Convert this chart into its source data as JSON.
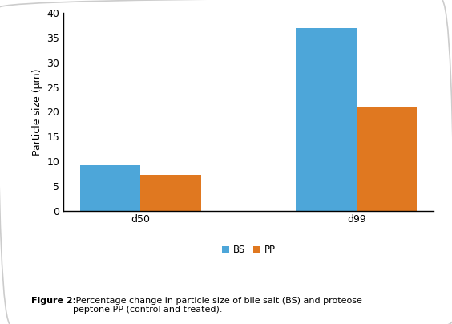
{
  "categories": [
    "d50",
    "d99"
  ],
  "bs_values": [
    9.2,
    37.0
  ],
  "pp_values": [
    7.3,
    21.0
  ],
  "bs_color": "#4da6d9",
  "pp_color": "#e07820",
  "ylabel": "Particle size (μm)",
  "ylim": [
    0,
    40
  ],
  "yticks": [
    0,
    5,
    10,
    15,
    20,
    25,
    30,
    35,
    40
  ],
  "legend_labels": [
    "BS",
    "PP"
  ],
  "bar_width": 0.28,
  "figure_caption_bold": "Figure 2:",
  "figure_caption_rest": " Percentage change in particle size of bile salt (BS) and proteose\npeptone PP (control and treated).",
  "background_color": "#ffffff",
  "spine_color": "#000000",
  "border_color": "#cccccc"
}
